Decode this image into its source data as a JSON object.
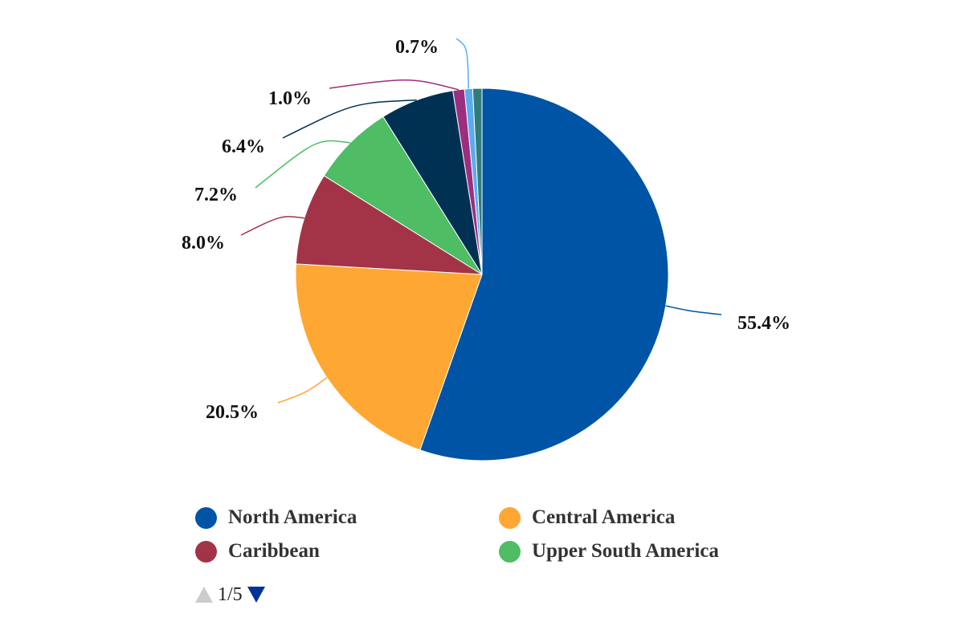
{
  "chart_data": {
    "type": "pie",
    "title": "",
    "slices": [
      {
        "name": "North America",
        "value": 55.4,
        "label": "55.4%",
        "color": "#0054a6"
      },
      {
        "name": "Central America",
        "value": 20.5,
        "label": "20.5%",
        "color": "#ffa733"
      },
      {
        "name": "Caribbean",
        "value": 8.0,
        "label": "8.0%",
        "color": "#a33346"
      },
      {
        "name": "Upper South America",
        "value": 7.2,
        "label": "7.2%",
        "color": "#4ebd64"
      },
      {
        "name": "",
        "value": 6.4,
        "label": "6.4%",
        "color": "#003152"
      },
      {
        "name": "",
        "value": 1.0,
        "label": "1.0%",
        "color": "#9b2f7f"
      },
      {
        "name": "",
        "value": 0.7,
        "label": "0.7%",
        "color": "#5aacf0"
      },
      {
        "name": "",
        "value": 0.8,
        "label": "",
        "color": "#2e7d7a"
      }
    ],
    "start_angle_deg": 0,
    "direction": "clockwise",
    "legend_position": "bottom"
  },
  "legend": {
    "items": [
      {
        "label": "North America",
        "color": "#0054a6"
      },
      {
        "label": "Central America",
        "color": "#ffa733"
      },
      {
        "label": "Caribbean",
        "color": "#a33346"
      },
      {
        "label": "Upper South America",
        "color": "#4ebd64"
      }
    ],
    "pager": {
      "text": "1/5",
      "up_color": "#cccccc",
      "down_color": "#003399"
    }
  }
}
